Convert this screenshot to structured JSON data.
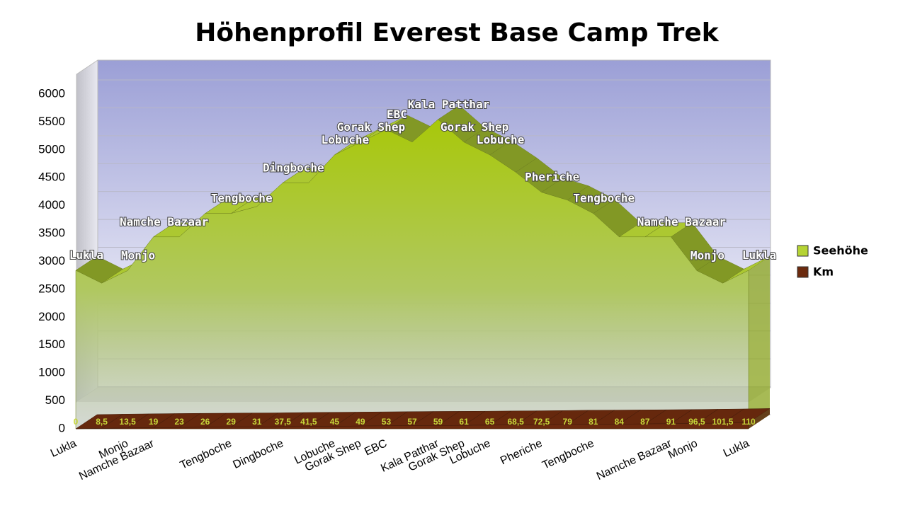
{
  "chart_data": {
    "type": "area3d",
    "title": "Höhenprofil Everest Base Camp Trek",
    "categories": [
      "Lukla",
      null,
      "Monjo",
      "Namche Bazaar",
      null,
      null,
      "Tengboche",
      null,
      "Dingboche",
      null,
      "Lobuche",
      "Gorak Shep",
      "EBC",
      null,
      "Kala Patthar",
      "Gorak Shep",
      "Lobuche",
      null,
      "Pheriche",
      null,
      "Tengboche",
      null,
      null,
      "Namche Bazaar",
      "Monjo",
      null,
      "Lukla"
    ],
    "series": [
      {
        "name": "Seehöhe",
        "color": "#b5d334",
        "values": [
          2840,
          2610,
          2835,
          3440,
          3440,
          3860,
          3860,
          3985,
          4410,
          4410,
          4910,
          5140,
          5364,
          5140,
          5545,
          5140,
          4910,
          4600,
          4240,
          4100,
          3860,
          3440,
          3440,
          3440,
          2835,
          2610,
          2840
        ]
      },
      {
        "name": "Km",
        "color": "#6b2a0e",
        "values": [
          0,
          8.5,
          13.5,
          19,
          23,
          26,
          29,
          31,
          37.5,
          41.5,
          45,
          49,
          53,
          57,
          59,
          61,
          65,
          68.5,
          72.5,
          79,
          81,
          84,
          87,
          91,
          96.5,
          101.5,
          110
        ],
        "value_labels": [
          "0",
          "8,5",
          "13,5",
          "19",
          "23",
          "26",
          "29",
          "31",
          "37,5",
          "41,5",
          "45",
          "49",
          "53",
          "57",
          "59",
          "61",
          "65",
          "68,5",
          "72,5",
          "79",
          "81",
          "84",
          "87",
          "91",
          "96,5",
          "101,5",
          "110"
        ]
      }
    ],
    "ylim": [
      0,
      6000
    ],
    "yticks": [
      0,
      500,
      1000,
      1500,
      2000,
      2500,
      3000,
      3500,
      4000,
      4500,
      5000,
      5500,
      6000
    ],
    "grid": true,
    "legend": "right"
  }
}
